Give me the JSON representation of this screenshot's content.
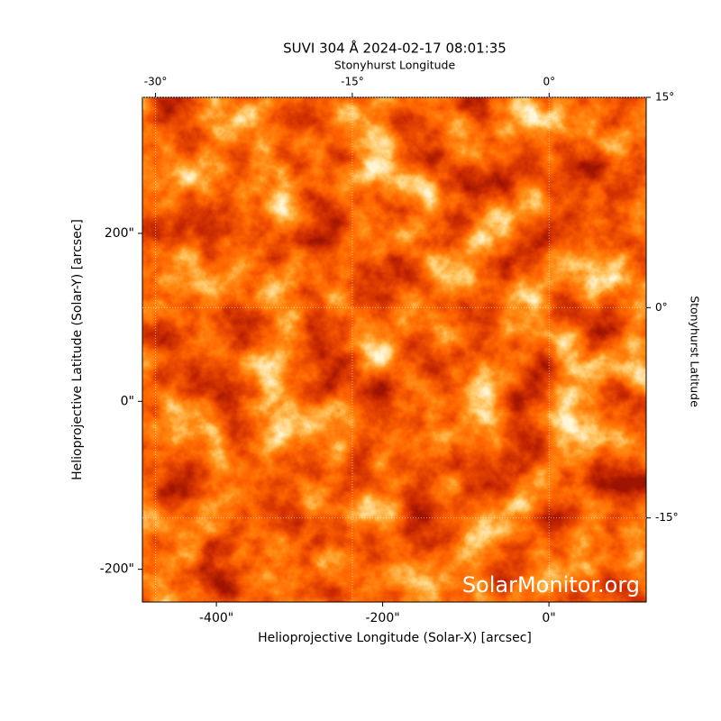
{
  "chart_data": {
    "type": "image",
    "title": "SUVI 304 Å 2024-02-17 08:01:35",
    "x_label": "Helioprojective Longitude (Solar-X) [arcsec]",
    "y_label": "Helioprojective Latitude (Solar-Y) [arcsec]",
    "x2_label": "Stonyhurst Longitude",
    "y2_label": "Stonyhurst Latitude",
    "watermark": "SolarMonitor.org",
    "xlim": [
      -489,
      117
    ],
    "ylim": [
      -239,
      362
    ],
    "xticks": [
      {
        "value": -400,
        "label": "-400\""
      },
      {
        "value": -200,
        "label": "-200\""
      },
      {
        "value": 0,
        "label": "0\""
      }
    ],
    "yticks": [
      {
        "value": -200,
        "label": "-200\""
      },
      {
        "value": 0,
        "label": "0\""
      },
      {
        "value": 200,
        "label": "200\""
      }
    ],
    "x2lim": [
      -31,
      7.4
    ],
    "x2ticks": [
      {
        "value": -30,
        "label": "-30°"
      },
      {
        "value": -15,
        "label": "-15°"
      },
      {
        "value": 0,
        "label": "0°"
      }
    ],
    "y2lim": [
      -21,
      15
    ],
    "y2ticks": [
      {
        "value": 15,
        "label": "15°"
      },
      {
        "value": 0,
        "label": "0°"
      },
      {
        "value": -15,
        "label": "-15°"
      }
    ],
    "grid": true
  }
}
